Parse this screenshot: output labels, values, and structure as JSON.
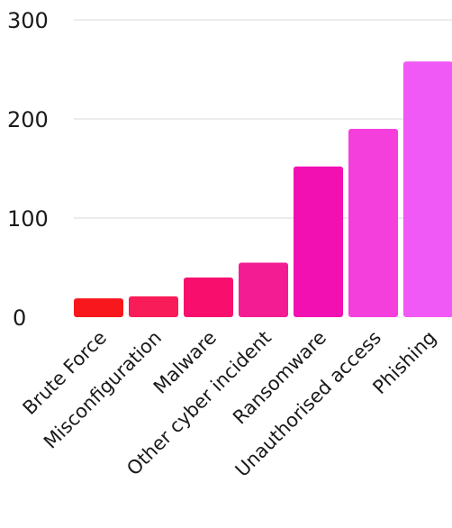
{
  "chart_data": {
    "type": "bar",
    "title": "",
    "xlabel": "",
    "ylabel": "",
    "ylim": [
      0,
      300
    ],
    "yticks": [
      0,
      100,
      200,
      300
    ],
    "grid": true,
    "categories": [
      "Brute Force",
      "Misconfiguration",
      "Malware",
      "Other cyber incident",
      "Ransomware",
      "Unauthorised access",
      "Phishing"
    ],
    "values": [
      19,
      21,
      40,
      55,
      152,
      190,
      258
    ],
    "colors": [
      "#f8171c",
      "#f81c59",
      "#f80f6e",
      "#f31c93",
      "#f310b3",
      "#f53fdd",
      "#f159f6"
    ]
  }
}
